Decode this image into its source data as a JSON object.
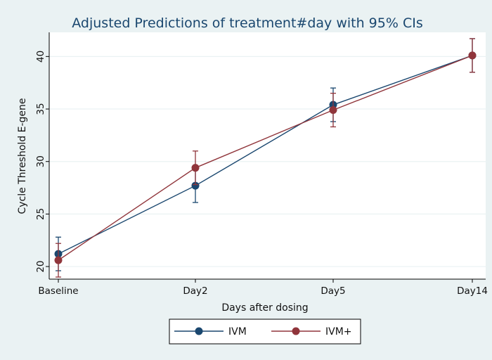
{
  "chart_data": {
    "type": "line",
    "title": "Adjusted Predictions of treatment#day with 95% CIs",
    "xlabel": "Days after dosing",
    "ylabel": "Cycle Threshold E-gene",
    "categories": [
      "Baseline",
      "Day2",
      "Day5",
      "Day14"
    ],
    "ylim": [
      18.8,
      42.3
    ],
    "yticks": [
      20,
      25,
      30,
      35,
      40
    ],
    "grid": true,
    "legend_position": "bottom",
    "series": [
      {
        "name": "IVM",
        "color": "#1a476f",
        "values": [
          21.2,
          27.7,
          35.4,
          40.1
        ],
        "ci_low": [
          19.6,
          26.1,
          33.8,
          38.5
        ],
        "ci_high": [
          22.8,
          29.3,
          37.0,
          41.7
        ]
      },
      {
        "name": "IVM+",
        "color": "#90353b",
        "values": [
          20.6,
          29.4,
          34.9,
          40.1
        ],
        "ci_low": [
          19.0,
          27.8,
          33.3,
          38.5
        ],
        "ci_high": [
          22.2,
          31.0,
          36.5,
          41.7
        ]
      }
    ]
  }
}
